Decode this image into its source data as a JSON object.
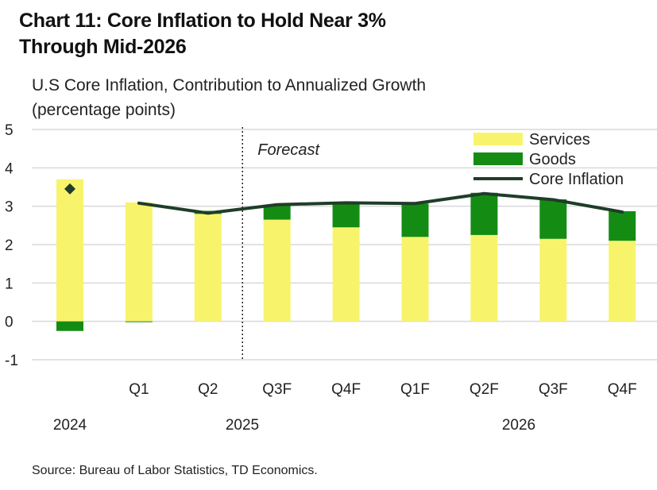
{
  "title_line1": "Chart 11: Core Inflation to Hold Near 3%",
  "title_line2": "Through Mid-2026",
  "subtitle_line1": "U.S Core Inflation, Contribution to Annualized Growth",
  "subtitle_line2": "(percentage points)",
  "source": "Source: Bureau of Labor Statistics, TD Economics.",
  "chart_data": {
    "type": "bar",
    "stacked": true,
    "categories": [
      "",
      "Q1",
      "Q2",
      "Q3F",
      "Q4F",
      "Q1F",
      "Q2F",
      "Q3F",
      "Q4F"
    ],
    "year_labels": [
      "2024",
      "2025",
      "2026"
    ],
    "series": [
      {
        "name": "Services",
        "kind": "bar",
        "color": "#f7f46b",
        "values": [
          3.7,
          3.1,
          2.8,
          2.65,
          2.45,
          2.2,
          2.25,
          2.15,
          2.1
        ]
      },
      {
        "name": "Goods",
        "kind": "bar",
        "color": "#148c14",
        "values": [
          -0.25,
          -0.02,
          0.08,
          0.38,
          0.65,
          0.87,
          1.1,
          1.03,
          0.77
        ]
      },
      {
        "name": "Core Inflation",
        "kind": "line",
        "color": "#1f3d28",
        "values": [
          null,
          3.08,
          2.82,
          3.04,
          3.09,
          3.07,
          3.33,
          3.17,
          2.85
        ]
      }
    ],
    "marker": {
      "category_index": 0,
      "value": 3.45,
      "shape": "diamond",
      "color": "#1f3d28"
    },
    "forecast_label": "Forecast",
    "forecast_divider_after_index": 2,
    "y_ticks": [
      5,
      4,
      3,
      2,
      1,
      0,
      -1
    ],
    "ylim": [
      -1,
      5
    ],
    "xlabel": "",
    "ylabel": "",
    "legend_position": "top-right",
    "grid": true
  }
}
